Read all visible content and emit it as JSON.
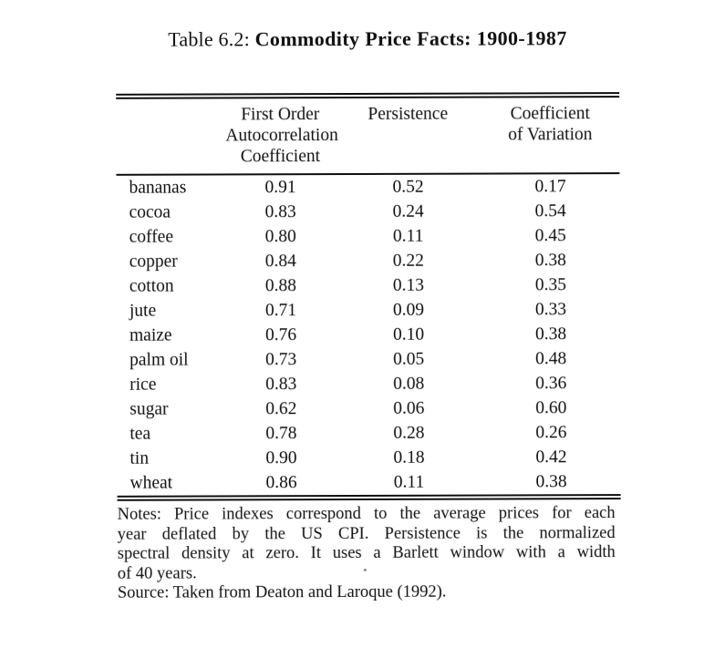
{
  "title": {
    "prefix": "Table 6.2:",
    "main": "Commodity Price Facts: 1900-1987"
  },
  "table": {
    "header": {
      "foac_lines": [
        "First Order",
        "Autocorrelation",
        "Coefficient"
      ],
      "persistence": "Persistence",
      "cov_lines": [
        "Coefficient",
        "of Variation"
      ]
    },
    "rows": [
      {
        "commodity": "bananas",
        "foac": "0.91",
        "persistence": "0.52",
        "cov": "0.17"
      },
      {
        "commodity": "cocoa",
        "foac": "0.83",
        "persistence": "0.24",
        "cov": "0.54"
      },
      {
        "commodity": "coffee",
        "foac": "0.80",
        "persistence": "0.11",
        "cov": "0.45"
      },
      {
        "commodity": "copper",
        "foac": "0.84",
        "persistence": "0.22",
        "cov": "0.38"
      },
      {
        "commodity": "cotton",
        "foac": "0.88",
        "persistence": "0.13",
        "cov": "0.35"
      },
      {
        "commodity": "jute",
        "foac": "0.71",
        "persistence": "0.09",
        "cov": "0.33"
      },
      {
        "commodity": "maize",
        "foac": "0.76",
        "persistence": "0.10",
        "cov": "0.38"
      },
      {
        "commodity": "palm oil",
        "foac": "0.73",
        "persistence": "0.05",
        "cov": "0.48"
      },
      {
        "commodity": "rice",
        "foac": "0.83",
        "persistence": "0.08",
        "cov": "0.36"
      },
      {
        "commodity": "sugar",
        "foac": "0.62",
        "persistence": "0.06",
        "cov": "0.60"
      },
      {
        "commodity": "tea",
        "foac": "0.78",
        "persistence": "0.28",
        "cov": "0.26"
      },
      {
        "commodity": "tin",
        "foac": "0.90",
        "persistence": "0.18",
        "cov": "0.42"
      },
      {
        "commodity": "wheat",
        "foac": "0.86",
        "persistence": "0.11",
        "cov": "0.38"
      }
    ]
  },
  "notes": {
    "lines": [
      "Notes: Price indexes correspond to the average prices for each",
      "year deflated by the US CPI. Persistence is the normalized",
      "spectral density at zero. It uses a Barlett window with a width",
      "of 40 years."
    ],
    "source": "Source: Taken from Deaton and Laroque (1992)."
  }
}
